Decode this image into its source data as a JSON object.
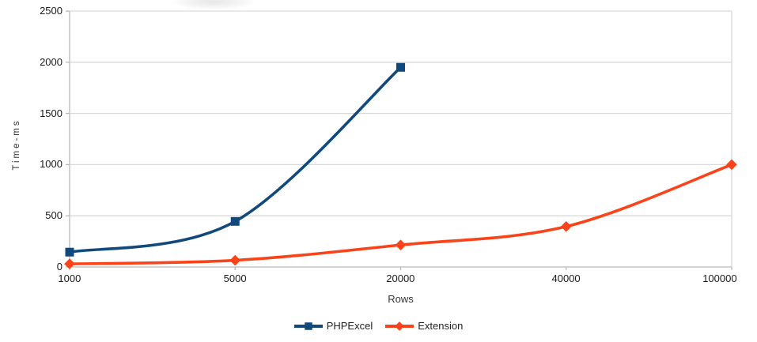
{
  "chart_data": {
    "type": "line",
    "smooth": true,
    "title": "",
    "xlabel": "Rows",
    "ylabel": "Time-ms",
    "categories": [
      "1000",
      "5000",
      "20000",
      "40000",
      "100000"
    ],
    "series": [
      {
        "name": "PHPExcel",
        "color": "#11497c",
        "marker": "square",
        "values": [
          145,
          445,
          1950,
          null,
          null
        ]
      },
      {
        "name": "Extension",
        "color": "#fb431a",
        "marker": "diamond",
        "values": [
          30,
          65,
          215,
          395,
          1000
        ]
      }
    ],
    "ylim": [
      0,
      2500
    ],
    "y_ticks": [
      0,
      500,
      1000,
      1500,
      2000,
      2500
    ],
    "grid": "horizontal",
    "legend_position": "bottom",
    "colors": {
      "gridline": "#d9d9d9",
      "axis": "#b9b9b9",
      "tick_text": "#1a1a1a"
    }
  }
}
